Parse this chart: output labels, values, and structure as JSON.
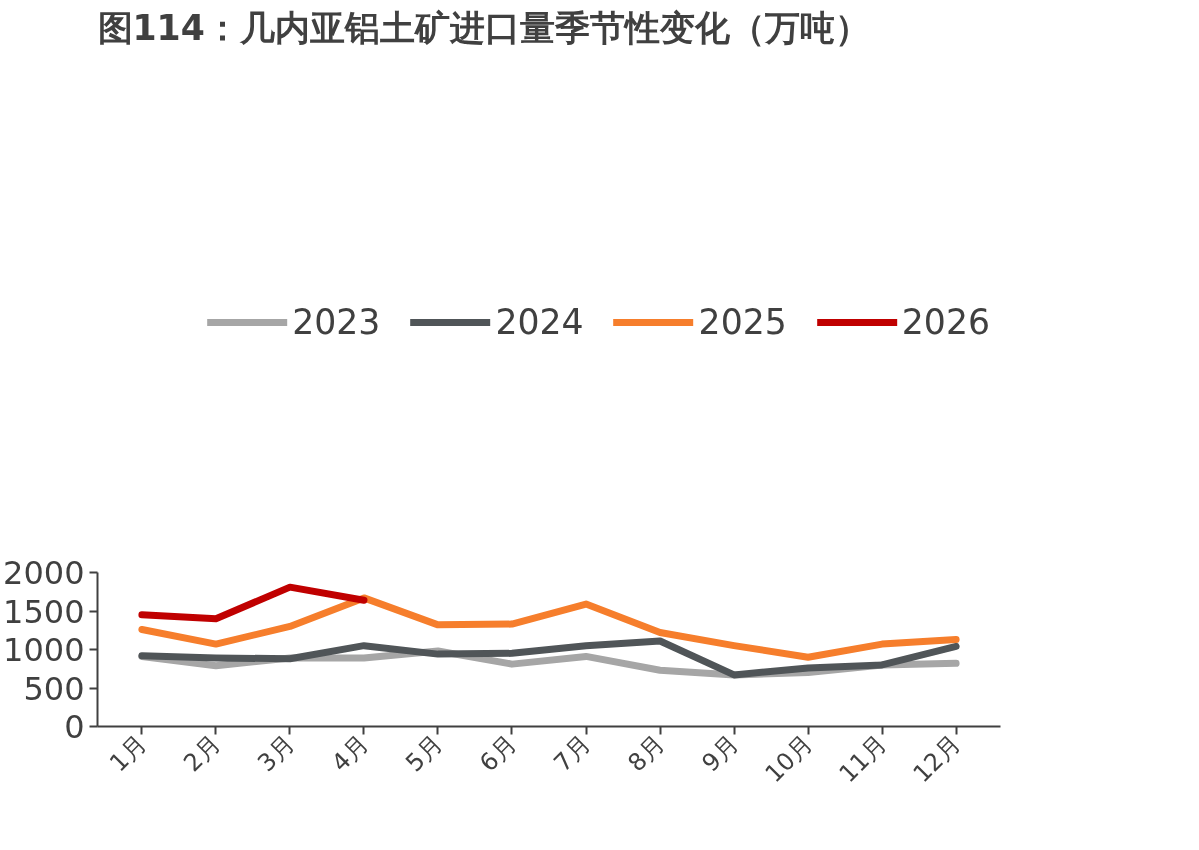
{
  "chart_data": {
    "type": "line",
    "title": "图114：几内亚铝土矿进口量季节性变化（万吨）",
    "categories": [
      "1月",
      "2月",
      "3月",
      "4月",
      "5月",
      "6月",
      "7月",
      "8月",
      "9月",
      "10月",
      "11月",
      "12月"
    ],
    "series": [
      {
        "name": "2023",
        "color": "#a6a6a6",
        "values": [
          910,
          790,
          890,
          890,
          980,
          810,
          910,
          730,
          670,
          700,
          800,
          820
        ]
      },
      {
        "name": "2024",
        "color": "#505558",
        "values": [
          920,
          890,
          880,
          1050,
          940,
          950,
          1050,
          1110,
          670,
          760,
          800,
          1040
        ]
      },
      {
        "name": "2025",
        "color": "#f67e2c",
        "values": [
          1260,
          1070,
          1300,
          1670,
          1320,
          1330,
          1590,
          1220,
          1050,
          900,
          1070,
          1130
        ]
      },
      {
        "name": "2026",
        "color": "#c00000",
        "values": [
          1450,
          1400,
          1810,
          1640,
          null,
          null,
          null,
          null,
          null,
          null,
          null,
          null
        ]
      }
    ],
    "ylim": [
      0,
      2000
    ],
    "yticks": [
      0,
      500,
      1000,
      1500,
      2000
    ],
    "grid": false,
    "legend": "top",
    "marker": "none",
    "line_style": "solid"
  }
}
